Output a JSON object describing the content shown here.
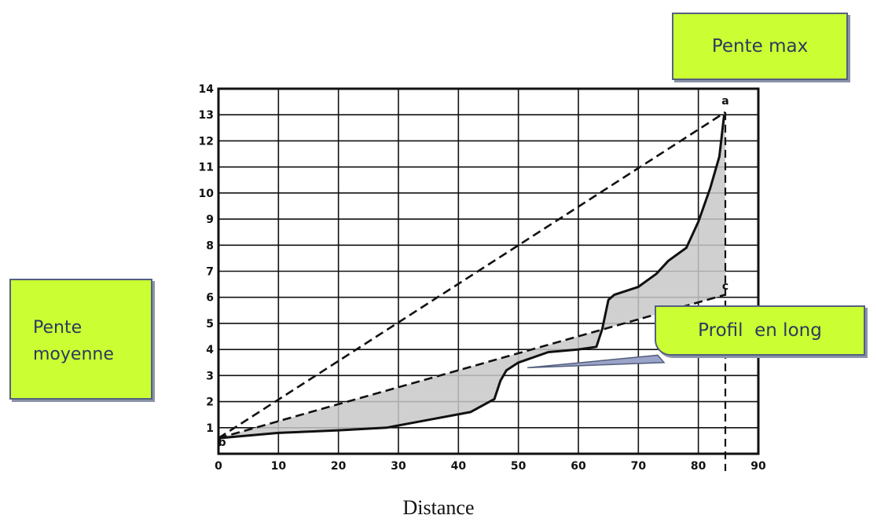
{
  "chart_data": {
    "type": "line",
    "xlabel": "Distance",
    "ylabel": "",
    "xlim": [
      0,
      90
    ],
    "ylim": [
      0,
      14
    ],
    "x_ticks": [
      0,
      10,
      20,
      30,
      40,
      50,
      60,
      70,
      80,
      90
    ],
    "y_ticks": [
      0,
      1,
      2,
      3,
      4,
      5,
      6,
      7,
      8,
      9,
      10,
      11,
      12,
      13,
      14
    ],
    "grid": true,
    "point_labels": [
      {
        "text": "a",
        "x": 84.5,
        "y": 13.4
      },
      {
        "text": "b",
        "x": 0.6,
        "y": 0.3
      },
      {
        "text": "c",
        "x": 84.5,
        "y": 6.3
      }
    ],
    "series": [
      {
        "name": "Pente max",
        "style": "dashed",
        "x": [
          0,
          84.5
        ],
        "y": [
          0.6,
          13.1
        ]
      },
      {
        "name": "Pente moyenne",
        "style": "dashed",
        "x": [
          0,
          84.5
        ],
        "y": [
          0.6,
          6.1
        ]
      },
      {
        "name": "Profil en long",
        "style": "solid",
        "x": [
          0,
          5,
          10,
          20,
          28,
          35,
          42,
          46,
          47,
          48,
          50,
          55,
          60,
          63,
          64,
          65,
          66,
          70,
          73,
          75,
          78,
          80,
          82,
          83.5,
          84.3
        ],
        "y": [
          0.6,
          0.7,
          0.8,
          0.9,
          1.0,
          1.3,
          1.6,
          2.1,
          2.8,
          3.2,
          3.5,
          3.9,
          4.0,
          4.1,
          4.8,
          5.9,
          6.1,
          6.4,
          6.9,
          7.4,
          7.9,
          8.9,
          10.2,
          11.4,
          13.0
        ]
      }
    ],
    "shaded_between": [
      "Pente moyenne",
      "Profil en long"
    ]
  },
  "callouts": {
    "max": "Pente max",
    "moy_line1": "Pente",
    "moy_line2": "moyenne",
    "profil": "Profil  en long"
  },
  "colors": {
    "callout_fill": "#ccff33",
    "callout_border": "#55607f",
    "callout_text": "#2b3a5e",
    "shade": "#c8c8c8",
    "ink": "#111111"
  }
}
